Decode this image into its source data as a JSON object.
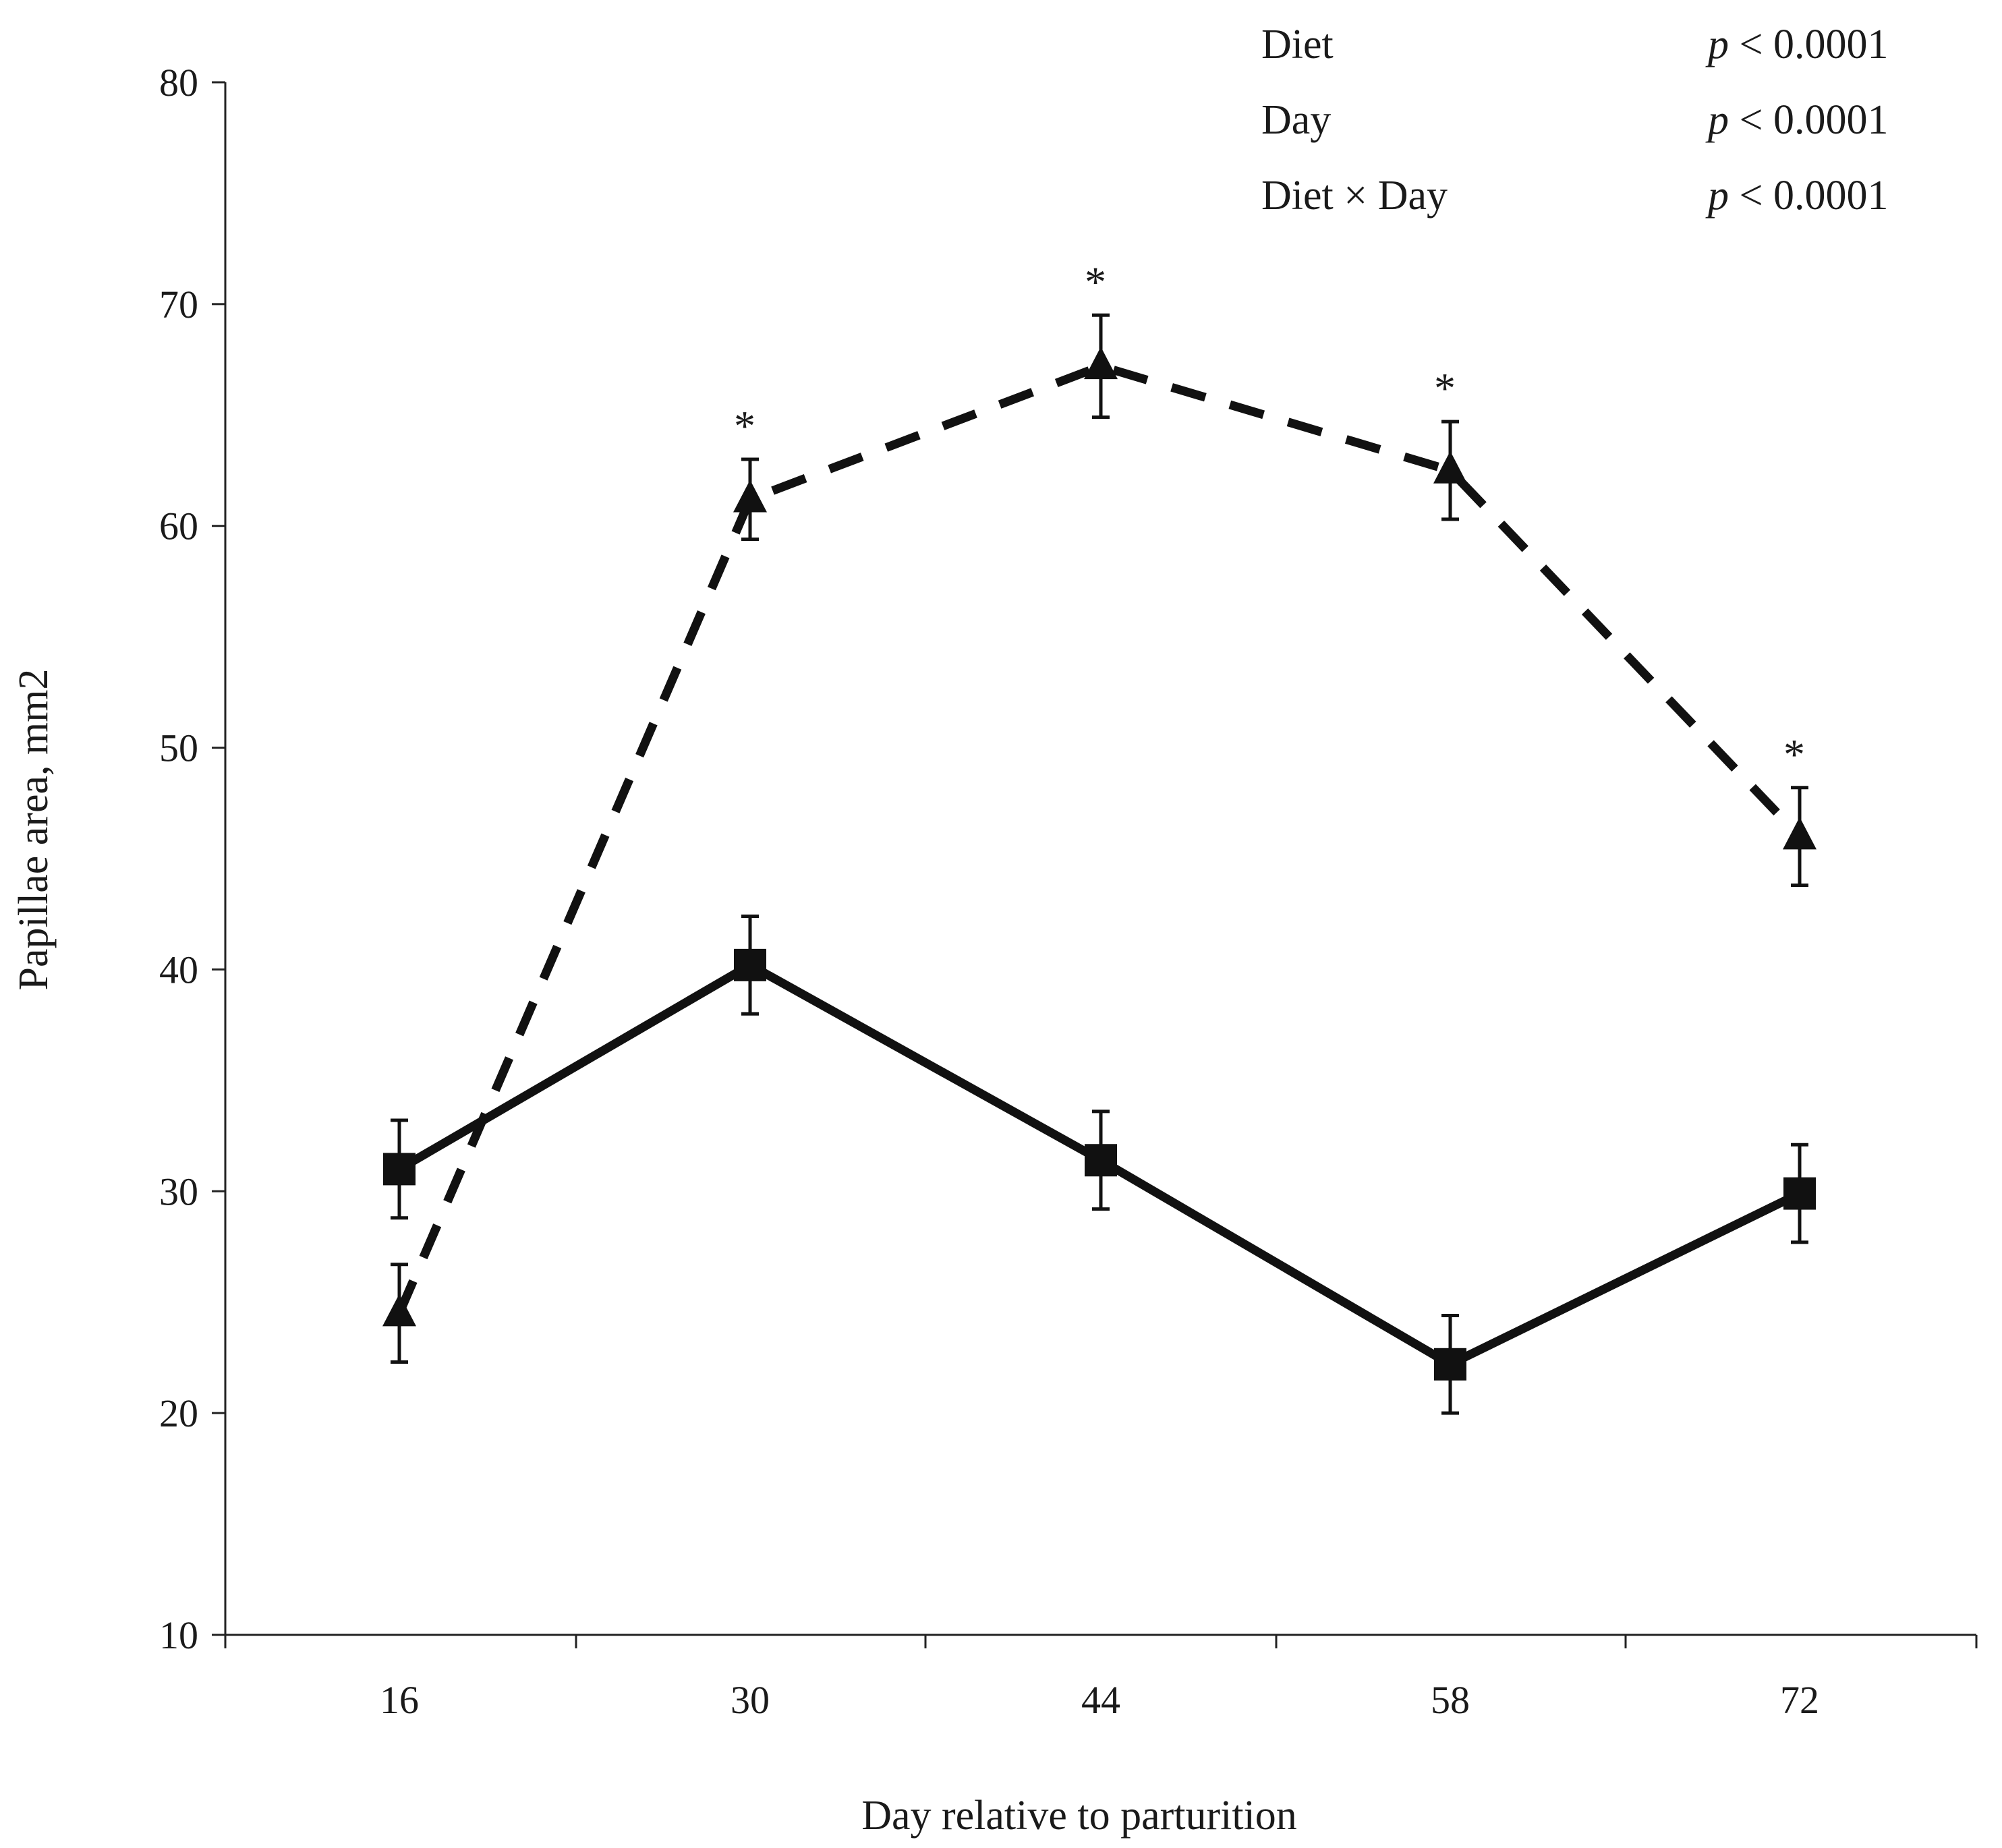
{
  "chart_data": {
    "type": "line",
    "title": "",
    "xlabel": "Day relative to parturition",
    "ylabel": "Papillae area, mm2",
    "categories": [
      "16",
      "30",
      "44",
      "58",
      "72"
    ],
    "ylim": [
      10,
      80
    ],
    "yticks": [
      10,
      20,
      30,
      40,
      50,
      60,
      70,
      80
    ],
    "grid": false,
    "series": [
      {
        "name": "solid-squares",
        "line_style": "solid",
        "marker": "square",
        "values": [
          31.0,
          40.2,
          31.4,
          22.2,
          29.9
        ],
        "error": [
          2.2,
          2.2,
          2.2,
          2.2,
          2.2
        ]
      },
      {
        "name": "dashed-triangles",
        "line_style": "dashed",
        "marker": "triangle",
        "values": [
          24.5,
          61.2,
          67.2,
          62.5,
          46.0
        ],
        "error": [
          2.2,
          1.8,
          2.3,
          2.2,
          2.2
        ],
        "significant": [
          false,
          true,
          true,
          true,
          true
        ]
      }
    ],
    "significance_symbol": "*",
    "annotations": [
      {
        "effect": "Diet",
        "p_symbol": "p",
        "p_rest": " < 0.0001"
      },
      {
        "effect": "Day",
        "p_symbol": "p",
        "p_rest": " < 0.0001"
      },
      {
        "effect": "Diet × Day",
        "p_symbol": "p",
        "p_rest": " < 0.0001"
      }
    ],
    "colors": {
      "line": "#111111",
      "axis": "#222222",
      "text": "#1a1a1a"
    }
  }
}
